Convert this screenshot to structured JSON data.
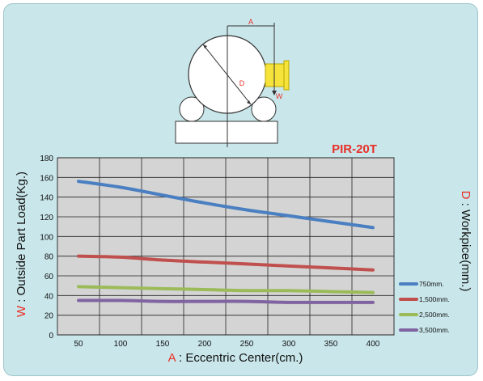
{
  "chart_data": {
    "type": "line",
    "title": "PIR-20T",
    "xlabel": {
      "prefix": "A",
      "text": " : Eccentric Center(cm.)"
    },
    "ylabel": {
      "prefix": "W",
      "text": " : Outside Part Load(Kg.)"
    },
    "y2label": {
      "prefix": "D",
      "text": " : Workpice(mm.)"
    },
    "x": [
      50,
      100,
      150,
      200,
      250,
      300,
      350,
      400
    ],
    "xlim": [
      25,
      425
    ],
    "ylim": [
      0,
      180
    ],
    "yticks": [
      0,
      20,
      40,
      60,
      80,
      100,
      120,
      140,
      160,
      180
    ],
    "grid": true,
    "legend_position": "right-bottom",
    "series": [
      {
        "name": "750mm.",
        "color": "#4a7fc1",
        "x": [
          50,
          100,
          150,
          200,
          250,
          300,
          350,
          400
        ],
        "values": [
          156,
          150,
          142,
          134,
          127,
          121,
          115,
          109
        ]
      },
      {
        "name": "1,500mm.",
        "color": "#c0504d",
        "x": [
          50,
          100,
          150,
          200,
          250,
          300,
          350,
          400
        ],
        "values": [
          80,
          79,
          76,
          74,
          72,
          70,
          68,
          66
        ]
      },
      {
        "name": "2,500mm.",
        "color": "#9bbb59",
        "x": [
          50,
          100,
          150,
          200,
          250,
          300,
          350,
          400
        ],
        "values": [
          49,
          48,
          47,
          46,
          45,
          45,
          44,
          43
        ]
      },
      {
        "name": "3,500mm.",
        "color": "#8064a2",
        "x": [
          50,
          100,
          150,
          200,
          250,
          300,
          350,
          400
        ],
        "values": [
          35,
          35,
          34,
          34,
          34,
          33,
          33,
          33
        ]
      }
    ]
  },
  "diagram": {
    "label_a": "A",
    "label_d": "D",
    "label_w": "W"
  },
  "colors": {
    "background": "#c9e6ea",
    "plot_area": "#d4d4d4",
    "accent_red": "#e8312a",
    "clamp_yellow": "#f5e23a"
  }
}
